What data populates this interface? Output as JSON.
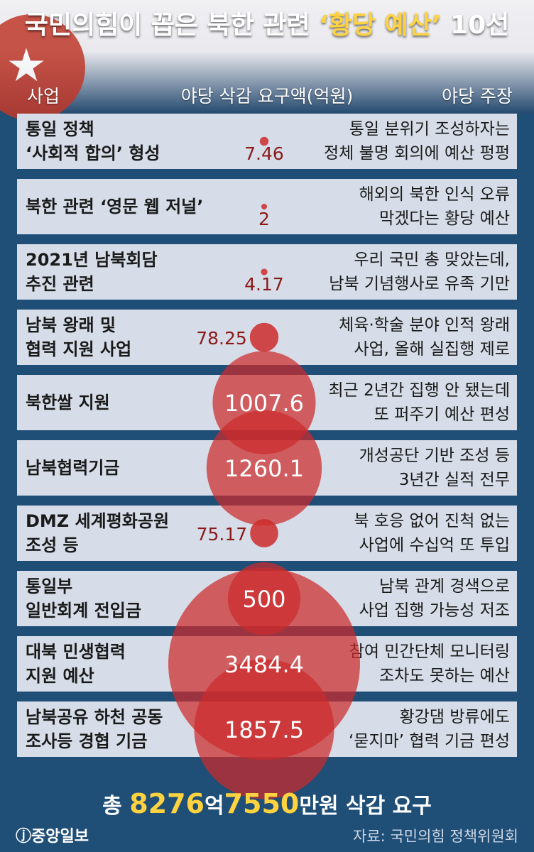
{
  "title": {
    "part1": "국민의힘이 꼽은 북한 관련 ",
    "highlight": "‘황당 예산’",
    "part2": " 10선"
  },
  "headers": {
    "col1": "사업",
    "col2": "야당 삭감 요구액(억원)",
    "col3": "야당 주장"
  },
  "colors": {
    "background": "#1f4e77",
    "row": "#d6dde8",
    "bubble": "#cc2b2b",
    "highlight": "#ffd23f"
  },
  "chart_data": {
    "type": "bubble",
    "title": "국민의힘이 꼽은 북한 관련 ‘황당 예산’ 10선",
    "value_label": "야당 삭감 요구액(억원)",
    "categories": [
      "통일 정책 ‘사회적 합의’ 형성",
      "북한 관련 ‘영문 웹 저널’",
      "2021년 남북회담 추진 관련",
      "남북 왕래 및 협력 지원 사업",
      "북한쌀 지원",
      "남북협력기금",
      "DMZ 세계평화공원 조성 등",
      "통일부 일반회계 전입금",
      "대북 민생협력 지원 예산",
      "남북공유 하천 공동 조사등 경협 기금"
    ],
    "values": [
      7.46,
      2,
      4.17,
      78.25,
      1007.6,
      1260.1,
      75.17,
      500,
      3484.4,
      1857.5
    ],
    "value_labels": [
      "7.46",
      "2",
      "4.17",
      "78.25",
      "1007.6",
      "1260.1",
      "75.17",
      "500",
      "3484.4",
      "1857.5"
    ]
  },
  "rows": [
    {
      "name": "통일 정책\n‘사회적 합의’ 형성",
      "claim": "통일 분위기 조성하자는\n정체 불명 회의에 예산 펑펑"
    },
    {
      "name": "북한 관련 ‘영문 웹 저널’",
      "claim": "해외의 북한 인식 오류\n막겠다는 황당 예산"
    },
    {
      "name": "2021년 남북회담\n추진 관련",
      "claim": "우리 국민 총 맞았는데,\n남북 기념행사로 유족 기만"
    },
    {
      "name": "남북 왕래 및\n협력 지원 사업",
      "claim": "체육·학술 분야 인적 왕래\n사업, 올해 실집행 제로"
    },
    {
      "name": "북한쌀 지원",
      "claim": "최근 2년간 집행 안 됐는데\n또 퍼주기 예산 편성"
    },
    {
      "name": "남북협력기금",
      "claim": "개성공단 기반 조성 등\n3년간 실적 전무"
    },
    {
      "name": "DMZ 세계평화공원\n조성 등",
      "claim": "북 호응 없어 진척 없는\n사업에 수십억 또 투입"
    },
    {
      "name": "통일부\n일반회계 전입금",
      "claim": "남북 관계 경색으로\n사업 집행 가능성 저조"
    },
    {
      "name": "대북 민생협력\n지원 예산",
      "claim": "참여 민간단체 모니터링\n조차도 못하는 예산"
    },
    {
      "name": "남북공유 하천 공동\n조사등 경협 기금",
      "claim": "황강댐 방류에도\n‘묻지마’ 협력 기금 편성"
    }
  ],
  "total": {
    "prefix": "총 ",
    "amount1": "8276",
    "unit1": "억",
    "amount2": "7550",
    "unit2": "만원",
    "suffix": " 삭감 요구"
  },
  "footer": {
    "logo": "ⓙ중앙일보",
    "source": "자료: 국민의힘 정책위원회"
  }
}
